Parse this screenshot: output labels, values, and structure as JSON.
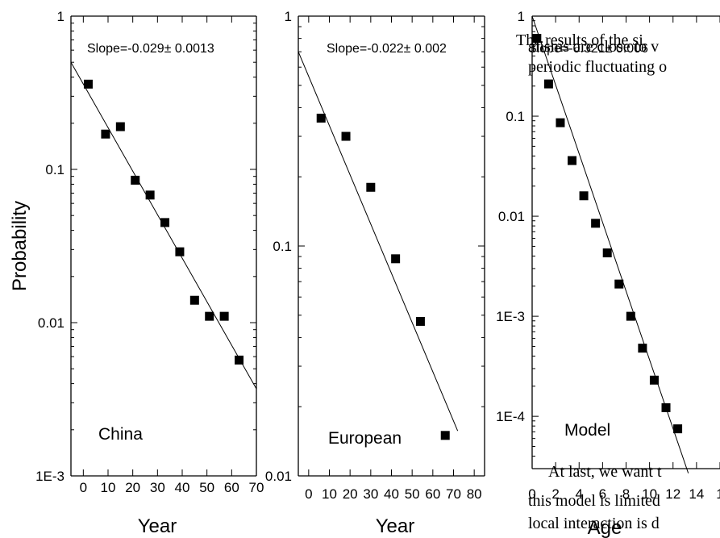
{
  "chart_data": [
    {
      "type": "scatter",
      "panel_label": "China",
      "xlabel": "Year",
      "ylabel": "Probability",
      "xlim": [
        -5,
        70
      ],
      "ylim": [
        0.001,
        1
      ],
      "log_y": true,
      "x_ticks": [
        "0",
        "10",
        "20",
        "30",
        "40",
        "50",
        "60",
        "70"
      ],
      "y_ticks": [
        "1E-3",
        "0.01",
        "0.1",
        "1"
      ],
      "annotation": "Slope=-0.029± 0.0013",
      "points": [
        {
          "x": 2,
          "y": 0.36
        },
        {
          "x": 9,
          "y": 0.17
        },
        {
          "x": 15,
          "y": 0.19
        },
        {
          "x": 21,
          "y": 0.085
        },
        {
          "x": 27,
          "y": 0.068
        },
        {
          "x": 33,
          "y": 0.045
        },
        {
          "x": 39,
          "y": 0.029
        },
        {
          "x": 45,
          "y": 0.014
        },
        {
          "x": 51,
          "y": 0.011
        },
        {
          "x": 57,
          "y": 0.011
        },
        {
          "x": 63,
          "y": 0.0057
        }
      ],
      "fit_line": [
        {
          "x": -5,
          "y": 0.5
        },
        {
          "x": 70,
          "y": 0.0037
        }
      ]
    },
    {
      "type": "scatter",
      "panel_label": "European",
      "xlabel": "Year",
      "ylabel": "",
      "xlim": [
        -5,
        85
      ],
      "ylim": [
        0.01,
        1
      ],
      "log_y": true,
      "x_ticks": [
        "0",
        "10",
        "20",
        "30",
        "40",
        "50",
        "60",
        "70",
        "80"
      ],
      "y_ticks": [
        "0.01",
        "0.1",
        "1"
      ],
      "annotation": "Slope=-0.022± 0.002",
      "points": [
        {
          "x": 6,
          "y": 0.36
        },
        {
          "x": 18,
          "y": 0.3
        },
        {
          "x": 30,
          "y": 0.18
        },
        {
          "x": 42,
          "y": 0.088
        },
        {
          "x": 54,
          "y": 0.047
        },
        {
          "x": 66,
          "y": 0.015
        }
      ],
      "fit_line": [
        {
          "x": -5,
          "y": 0.7
        },
        {
          "x": 72,
          "y": 0.0157
        }
      ]
    },
    {
      "type": "scatter",
      "panel_label": "Model",
      "xlabel": "Age",
      "ylabel": "",
      "xlim": [
        0,
        16
      ],
      "ylim": [
        3e-05,
        1
      ],
      "log_y": true,
      "x_ticks": [
        "0",
        "2",
        "4",
        "6",
        "8",
        "10",
        "12",
        "14",
        "1"
      ],
      "y_ticks": [
        "1E-4",
        "1E-3",
        "0.01",
        "0.1",
        "1"
      ],
      "annotation": "Slope=-0.321± 0.006",
      "points": [
        {
          "x": 0.4,
          "y": 0.6
        },
        {
          "x": 1.4,
          "y": 0.21
        },
        {
          "x": 2.4,
          "y": 0.086
        },
        {
          "x": 3.4,
          "y": 0.036
        },
        {
          "x": 4.4,
          "y": 0.016
        },
        {
          "x": 5.4,
          "y": 0.0085
        },
        {
          "x": 6.4,
          "y": 0.0043
        },
        {
          "x": 7.4,
          "y": 0.0021
        },
        {
          "x": 8.4,
          "y": 0.001
        },
        {
          "x": 9.4,
          "y": 0.00048
        },
        {
          "x": 10.4,
          "y": 0.00023
        },
        {
          "x": 11.4,
          "y": 0.000122
        },
        {
          "x": 12.4,
          "y": 7.5e-05
        }
      ],
      "fit_line": [
        {
          "x": 0,
          "y": 1.0
        },
        {
          "x": 13.3,
          "y": 2.7e-05
        }
      ]
    }
  ],
  "overlay_text": {
    "line1": "The results of the si",
    "line2": "alisms are close to v",
    "line3": "periodic fluctuating o",
    "line4": "At last, we want t",
    "line5": "this model is limited",
    "line6": "local interaction is d"
  }
}
